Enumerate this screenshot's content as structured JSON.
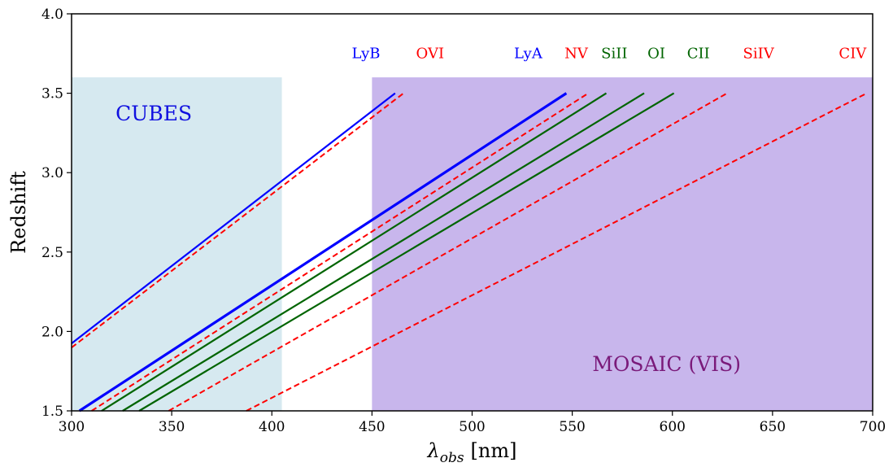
{
  "chart_data": {
    "type": "line",
    "xlabel_symbol": "λ",
    "xlabel_sub": "obs",
    "xlabel_unit": "[nm]",
    "ylabel": "Redshift",
    "xlim": [
      300,
      700
    ],
    "ylim": [
      1.5,
      4.0
    ],
    "grid": false,
    "xticks": [
      "300",
      "350",
      "400",
      "450",
      "500",
      "550",
      "600",
      "650",
      "700"
    ],
    "yticks": [
      "1.5",
      "2.0",
      "2.5",
      "3.0",
      "3.5",
      "4.0"
    ],
    "regions": [
      {
        "label": "CUBES",
        "x": [
          300,
          405
        ],
        "y": [
          1.5,
          3.6
        ],
        "fill": "#d6e9f0",
        "label_color": "#1010e0",
        "label_at": [
          322,
          3.33
        ]
      },
      {
        "label": "MOSAIC (VIS)",
        "x": [
          450,
          700
        ],
        "y": [
          1.5,
          3.6
        ],
        "fill": "#c8b6ec",
        "label_color": "#7a1a7a",
        "label_at": [
          560,
          1.75
        ]
      }
    ],
    "series": [
      {
        "name": "LyB",
        "rest_wavelength": 102.57,
        "z_range": [
          1.5,
          3.5
        ],
        "color": "#0000ff",
        "style": "solid",
        "width": 2.2,
        "label_x": 447
      },
      {
        "name": "OVI",
        "rest_wavelength": 103.5,
        "z_range": [
          1.5,
          3.5
        ],
        "color": "#ff0000",
        "style": "dashed",
        "width": 2.0,
        "label_x": 479
      },
      {
        "name": "LyA",
        "rest_wavelength": 121.57,
        "z_range": [
          1.5,
          3.5
        ],
        "color": "#0000ff",
        "style": "solid",
        "width": 3.2,
        "label_x": 528
      },
      {
        "name": "NV",
        "rest_wavelength": 124.0,
        "z_range": [
          1.5,
          3.5
        ],
        "color": "#ff0000",
        "style": "dashed",
        "width": 2.0,
        "label_x": 552
      },
      {
        "name": "SiII",
        "rest_wavelength": 126.0,
        "z_range": [
          1.5,
          3.5
        ],
        "color": "#006400",
        "style": "solid",
        "width": 2.2,
        "label_x": 571
      },
      {
        "name": "OI",
        "rest_wavelength": 130.2,
        "z_range": [
          1.5,
          3.5
        ],
        "color": "#006400",
        "style": "solid",
        "width": 2.2,
        "label_x": 592
      },
      {
        "name": "CII",
        "rest_wavelength": 133.5,
        "z_range": [
          1.5,
          3.5
        ],
        "color": "#006400",
        "style": "solid",
        "width": 2.2,
        "label_x": 613
      },
      {
        "name": "SiIV",
        "rest_wavelength": 139.4,
        "z_range": [
          1.5,
          3.5
        ],
        "color": "#ff0000",
        "style": "dashed",
        "width": 2.0,
        "label_x": 643
      },
      {
        "name": "CIV",
        "rest_wavelength": 154.9,
        "z_range": [
          1.5,
          3.5
        ],
        "color": "#ff0000",
        "style": "dashed",
        "width": 2.0,
        "label_x": 690
      }
    ],
    "line_label_y": 3.72
  }
}
